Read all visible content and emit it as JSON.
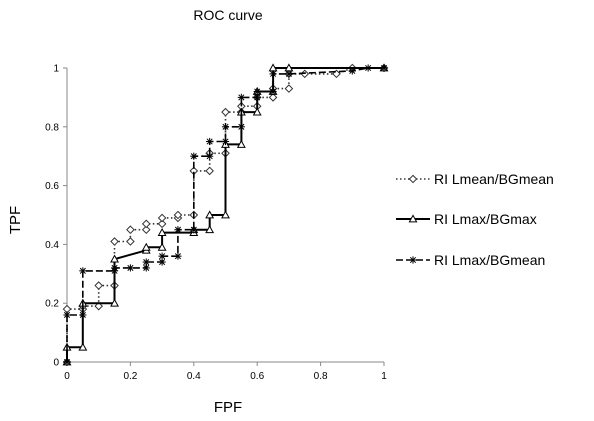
{
  "chart_data": {
    "type": "line",
    "title": "ROC curve",
    "xlabel": "FPF",
    "ylabel": "TPF",
    "xlim": [
      0,
      1
    ],
    "ylim": [
      0,
      1
    ],
    "x_ticks": [
      "0",
      "0.2",
      "0.4",
      "0.6",
      "0.8",
      "1"
    ],
    "y_ticks": [
      "0",
      "0.2",
      "0.4",
      "0.6",
      "0.8",
      "1"
    ],
    "grid": false,
    "legend_position": "right",
    "series": [
      {
        "name": "RI    Lmean/BGmean",
        "line_style": "dotted",
        "marker": "diamond",
        "color": "#333333",
        "points": [
          [
            0,
            0
          ],
          [
            0,
            0.18
          ],
          [
            0.05,
            0.18
          ],
          [
            0.05,
            0.19
          ],
          [
            0.1,
            0.19
          ],
          [
            0.1,
            0.26
          ],
          [
            0.15,
            0.26
          ],
          [
            0.15,
            0.41
          ],
          [
            0.2,
            0.41
          ],
          [
            0.2,
            0.45
          ],
          [
            0.25,
            0.45
          ],
          [
            0.25,
            0.47
          ],
          [
            0.3,
            0.47
          ],
          [
            0.3,
            0.49
          ],
          [
            0.35,
            0.49
          ],
          [
            0.35,
            0.5
          ],
          [
            0.4,
            0.5
          ],
          [
            0.4,
            0.65
          ],
          [
            0.45,
            0.65
          ],
          [
            0.45,
            0.71
          ],
          [
            0.5,
            0.71
          ],
          [
            0.5,
            0.85
          ],
          [
            0.55,
            0.85
          ],
          [
            0.55,
            0.87
          ],
          [
            0.6,
            0.87
          ],
          [
            0.6,
            0.9
          ],
          [
            0.65,
            0.9
          ],
          [
            0.65,
            0.93
          ],
          [
            0.7,
            0.93
          ],
          [
            0.7,
            0.98
          ],
          [
            0.75,
            0.98
          ],
          [
            0.85,
            0.98
          ],
          [
            0.9,
            1
          ],
          [
            1,
            1
          ]
        ]
      },
      {
        "name": "RI    Lmax/BGmax",
        "line_style": "solid",
        "marker": "triangle",
        "color": "#000000",
        "points": [
          [
            0,
            0
          ],
          [
            0,
            0.05
          ],
          [
            0.05,
            0.05
          ],
          [
            0.05,
            0.2
          ],
          [
            0.15,
            0.2
          ],
          [
            0.15,
            0.35
          ],
          [
            0.25,
            0.38
          ],
          [
            0.25,
            0.39
          ],
          [
            0.3,
            0.39
          ],
          [
            0.3,
            0.44
          ],
          [
            0.4,
            0.44
          ],
          [
            0.4,
            0.45
          ],
          [
            0.45,
            0.45
          ],
          [
            0.45,
            0.5
          ],
          [
            0.5,
            0.5
          ],
          [
            0.5,
            0.74
          ],
          [
            0.55,
            0.74
          ],
          [
            0.55,
            0.85
          ],
          [
            0.6,
            0.85
          ],
          [
            0.6,
            0.92
          ],
          [
            0.65,
            0.92
          ],
          [
            0.65,
            1
          ],
          [
            0.7,
            1
          ],
          [
            1,
            1
          ]
        ]
      },
      {
        "name": "RI    Lmax/BGmean",
        "line_style": "dashed",
        "marker": "asterisk",
        "color": "#000000",
        "points": [
          [
            0,
            0
          ],
          [
            0,
            0.16
          ],
          [
            0.05,
            0.16
          ],
          [
            0.05,
            0.31
          ],
          [
            0.15,
            0.31
          ],
          [
            0.15,
            0.32
          ],
          [
            0.2,
            0.32
          ],
          [
            0.25,
            0.32
          ],
          [
            0.25,
            0.34
          ],
          [
            0.3,
            0.34
          ],
          [
            0.3,
            0.36
          ],
          [
            0.35,
            0.36
          ],
          [
            0.35,
            0.45
          ],
          [
            0.4,
            0.45
          ],
          [
            0.4,
            0.7
          ],
          [
            0.45,
            0.7
          ],
          [
            0.45,
            0.75
          ],
          [
            0.5,
            0.75
          ],
          [
            0.5,
            0.8
          ],
          [
            0.55,
            0.8
          ],
          [
            0.55,
            0.9
          ],
          [
            0.6,
            0.9
          ],
          [
            0.6,
            0.92
          ],
          [
            0.65,
            0.92
          ],
          [
            0.65,
            0.98
          ],
          [
            0.7,
            0.98
          ],
          [
            0.9,
            0.99
          ],
          [
            0.95,
            1
          ],
          [
            1,
            1
          ]
        ]
      }
    ]
  }
}
